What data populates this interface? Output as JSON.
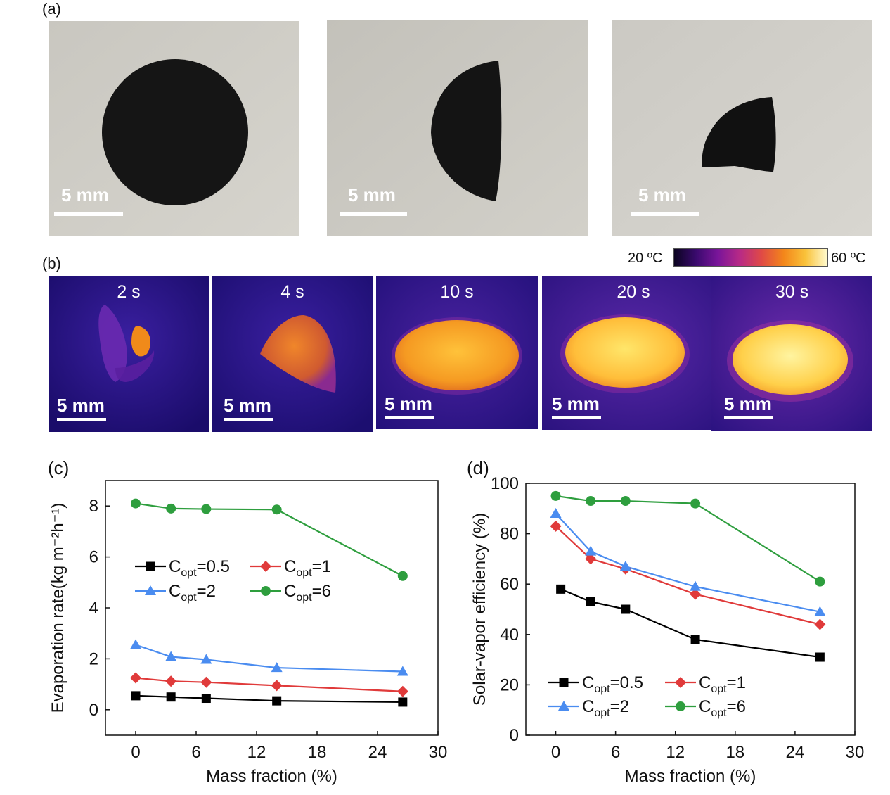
{
  "panels": {
    "a": {
      "label": "(a)",
      "photos": [
        {
          "scale_text": "5 mm"
        },
        {
          "scale_text": "5 mm"
        },
        {
          "scale_text": "5 mm"
        }
      ]
    },
    "b": {
      "label": "(b)",
      "colorbar": {
        "min_label": "20 ºC",
        "max_label": "60 ºC"
      },
      "frames": [
        {
          "time": "2 s",
          "scale_text": "5 mm"
        },
        {
          "time": "4 s",
          "scale_text": "5 mm"
        },
        {
          "time": "10 s",
          "scale_text": "5 mm"
        },
        {
          "time": "20 s",
          "scale_text": "5 mm"
        },
        {
          "time": "30 s",
          "scale_text": "5 mm"
        }
      ]
    }
  },
  "chart_data": [
    {
      "panel_label": "(c)",
      "type": "line",
      "xlabel": "Mass fraction (%)",
      "ylabel": "Evaporation rate(kg m⁻²h⁻¹)",
      "xlim": [
        -3,
        30
      ],
      "ylim": [
        -1,
        9
      ],
      "xticks": [
        0,
        6,
        12,
        18,
        24,
        30
      ],
      "yticks": [
        0,
        2,
        4,
        6,
        8
      ],
      "grid": false,
      "legend_position": "center-left",
      "series": [
        {
          "name": "Copt=0.5",
          "color": "#000000",
          "marker": "square",
          "x": [
            0,
            3.5,
            7,
            14,
            26.5
          ],
          "y": [
            0.55,
            0.5,
            0.45,
            0.35,
            0.3
          ]
        },
        {
          "name": "Copt=1",
          "color": "#e03a3a",
          "marker": "diamond",
          "x": [
            0,
            3.5,
            7,
            14,
            26.5
          ],
          "y": [
            1.25,
            1.12,
            1.08,
            0.95,
            0.72
          ]
        },
        {
          "name": "Copt=2",
          "color": "#4a8cf0",
          "marker": "triangle",
          "x": [
            0,
            3.5,
            7,
            14,
            26.5
          ],
          "y": [
            2.55,
            2.08,
            1.97,
            1.65,
            1.5
          ]
        },
        {
          "name": "Copt=6",
          "color": "#2e9e3e",
          "marker": "circle",
          "x": [
            0,
            3.5,
            7,
            14,
            26.5
          ],
          "y": [
            8.1,
            7.9,
            7.88,
            7.86,
            5.25
          ]
        }
      ]
    },
    {
      "panel_label": "(d)",
      "type": "line",
      "xlabel": "Mass fraction (%)",
      "ylabel": "Solar-vapor efficiency (%)",
      "xlim": [
        -3,
        30
      ],
      "ylim": [
        0,
        100
      ],
      "xticks": [
        0,
        6,
        12,
        18,
        24,
        30
      ],
      "yticks": [
        0,
        20,
        40,
        60,
        80,
        100
      ],
      "grid": false,
      "legend_position": "bottom-left",
      "series": [
        {
          "name": "Copt=0.5",
          "color": "#000000",
          "marker": "square",
          "x": [
            0.5,
            3.5,
            7,
            14,
            26.5
          ],
          "y": [
            58,
            53,
            50,
            38,
            31
          ]
        },
        {
          "name": "Copt=1",
          "color": "#e03a3a",
          "marker": "diamond",
          "x": [
            0,
            3.5,
            7,
            14,
            26.5
          ],
          "y": [
            83,
            70,
            66,
            56,
            44
          ]
        },
        {
          "name": "Copt=2",
          "color": "#4a8cf0",
          "marker": "triangle",
          "x": [
            0,
            3.5,
            7,
            14,
            26.5
          ],
          "y": [
            88,
            73,
            67,
            59,
            49
          ]
        },
        {
          "name": "Copt=6",
          "color": "#2e9e3e",
          "marker": "circle",
          "x": [
            0,
            3.5,
            7,
            14,
            26.5
          ],
          "y": [
            95,
            93,
            93,
            92,
            61
          ]
        }
      ]
    }
  ]
}
